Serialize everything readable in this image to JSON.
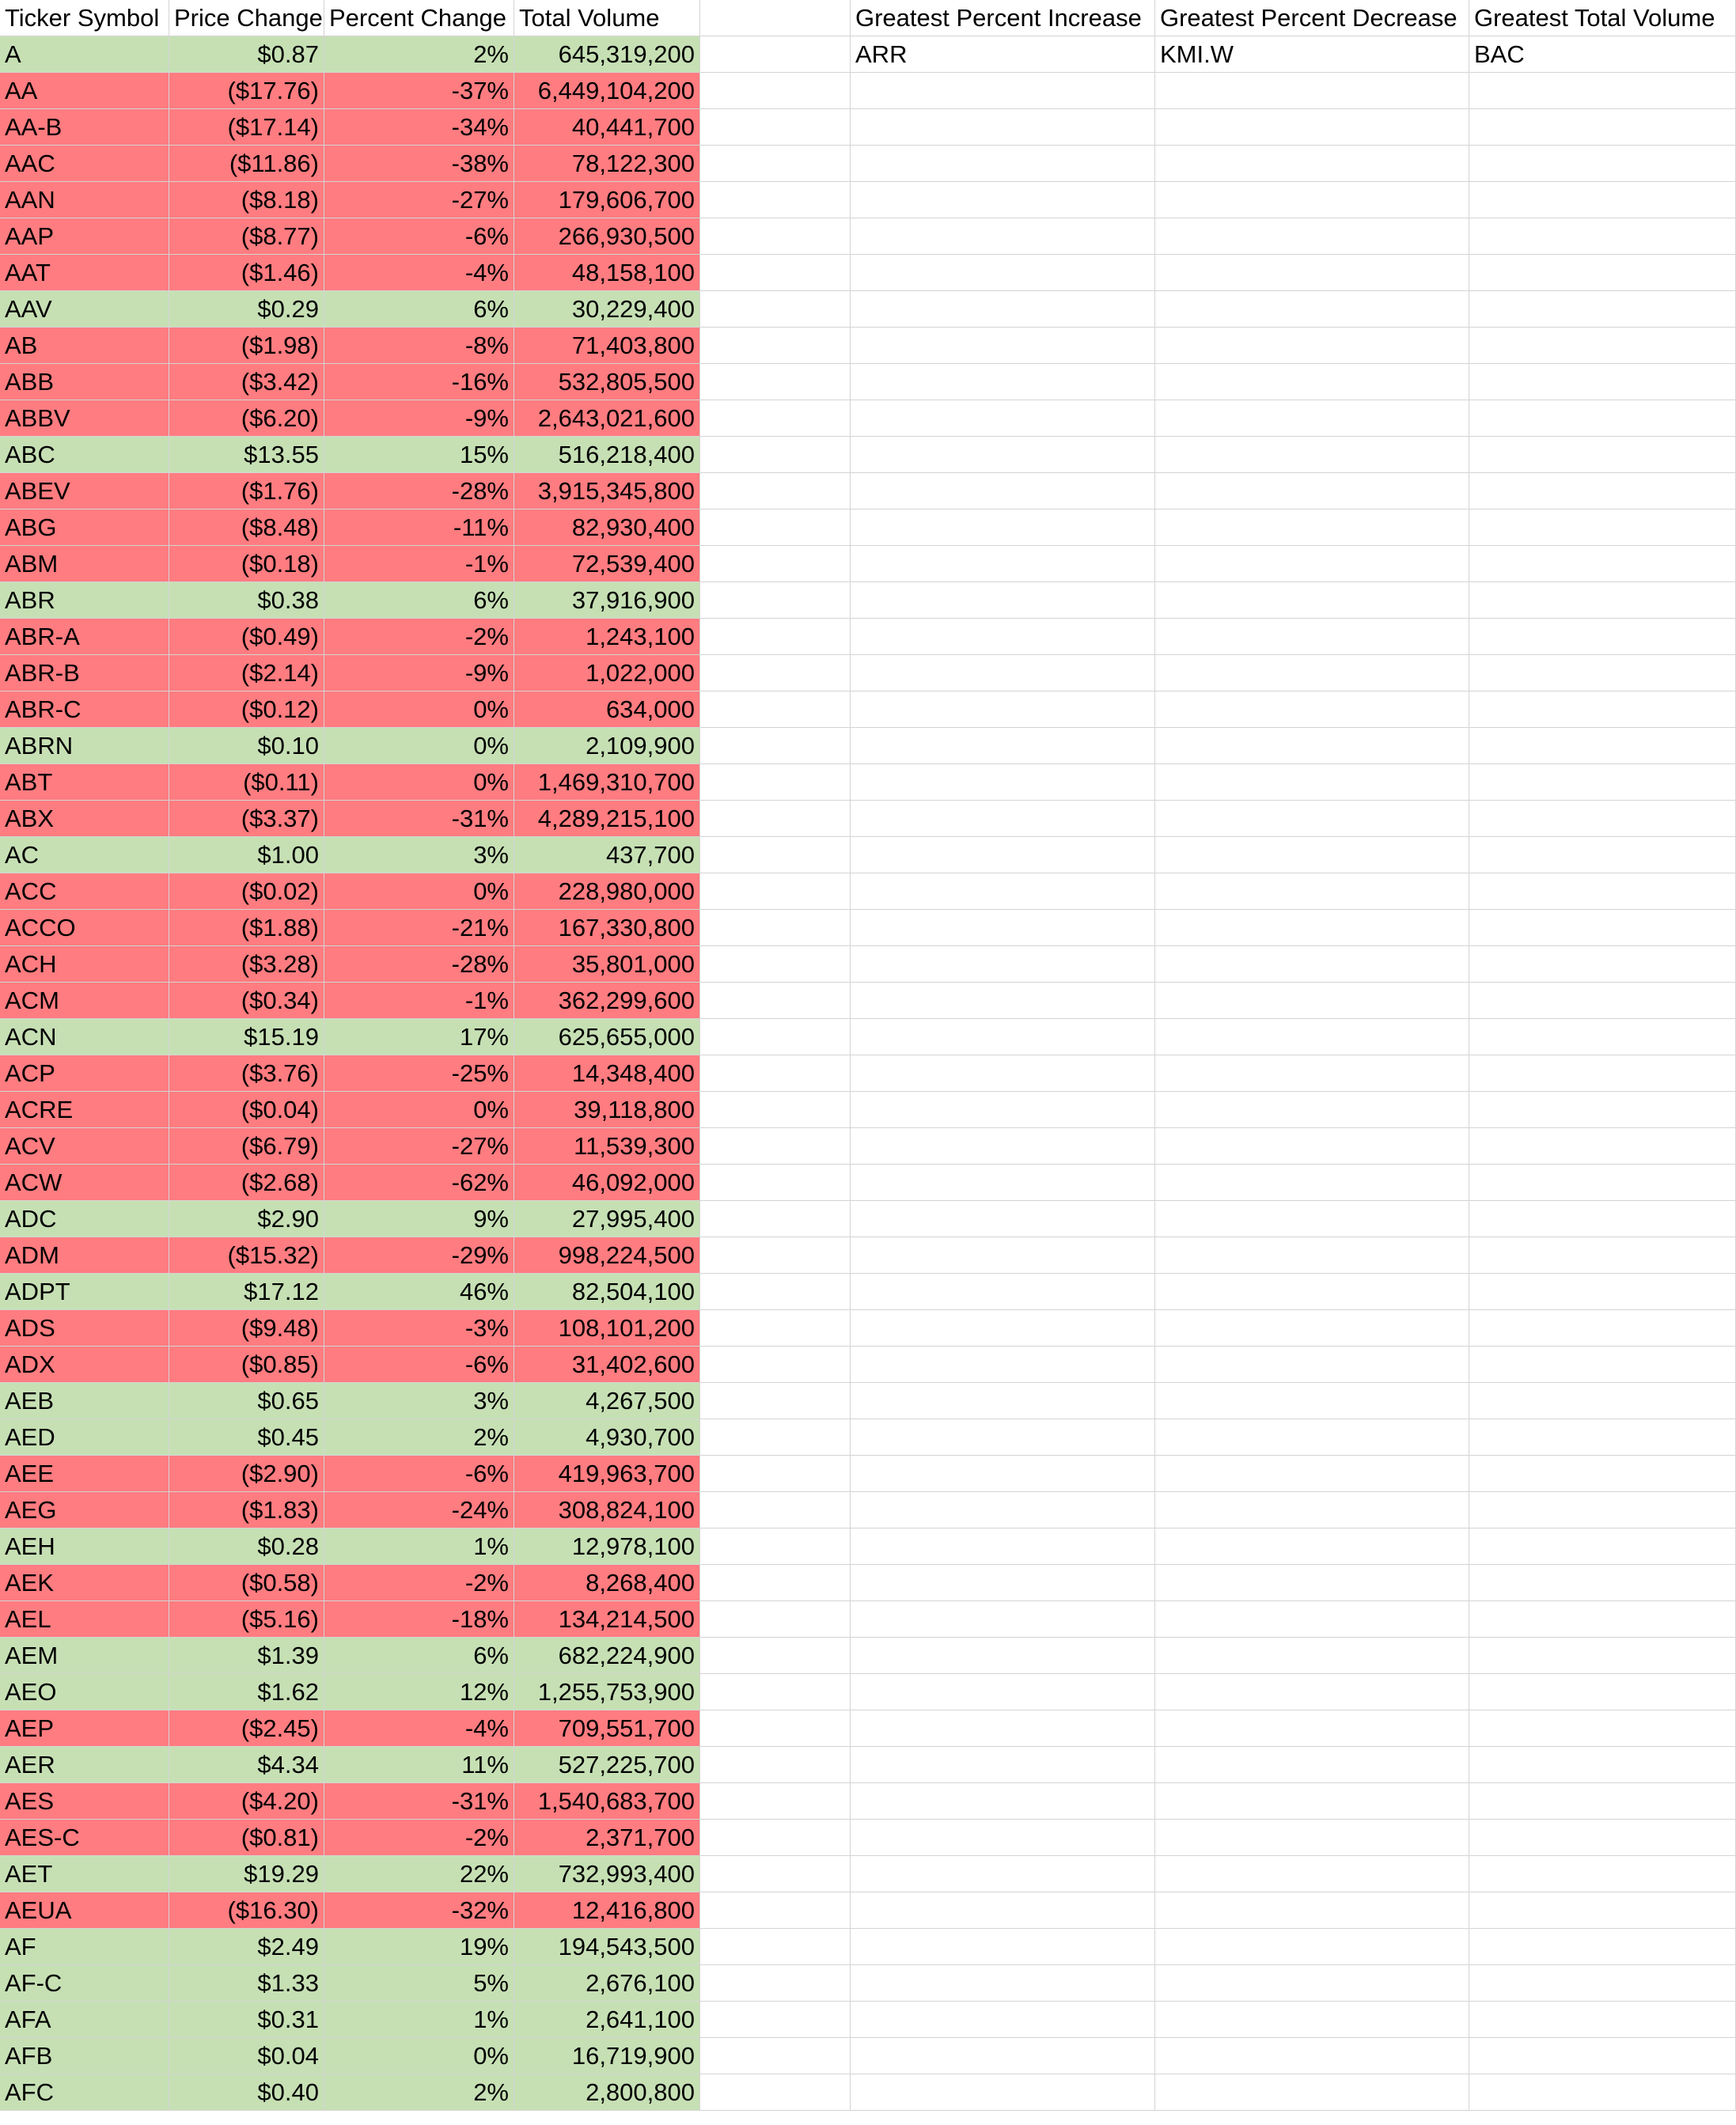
{
  "colors": {
    "positive": "#c6e0b4",
    "negative": "#ff7c80",
    "gridline": "#d4d4d4"
  },
  "headers": {
    "ticker": "Ticker Symbol",
    "price_change": "Price Change",
    "percent_change": "Percent Change",
    "total_volume": "Total Volume",
    "greatest_increase": "Greatest Percent Increase",
    "greatest_decrease": "Greatest Percent Decrease",
    "greatest_volume": "Greatest Total Volume"
  },
  "summary": {
    "greatest_increase": "ARR",
    "greatest_decrease": "KMI.W",
    "greatest_volume": "BAC"
  },
  "rows": [
    {
      "ticker": "A",
      "price": "$0.87",
      "pct": "2%",
      "volume": "645,319,200",
      "status": "pos"
    },
    {
      "ticker": "AA",
      "price": "($17.76)",
      "pct": "-37%",
      "volume": "6,449,104,200",
      "status": "neg"
    },
    {
      "ticker": "AA-B",
      "price": "($17.14)",
      "pct": "-34%",
      "volume": "40,441,700",
      "status": "neg"
    },
    {
      "ticker": "AAC",
      "price": "($11.86)",
      "pct": "-38%",
      "volume": "78,122,300",
      "status": "neg"
    },
    {
      "ticker": "AAN",
      "price": "($8.18)",
      "pct": "-27%",
      "volume": "179,606,700",
      "status": "neg"
    },
    {
      "ticker": "AAP",
      "price": "($8.77)",
      "pct": "-6%",
      "volume": "266,930,500",
      "status": "neg"
    },
    {
      "ticker": "AAT",
      "price": "($1.46)",
      "pct": "-4%",
      "volume": "48,158,100",
      "status": "neg"
    },
    {
      "ticker": "AAV",
      "price": "$0.29",
      "pct": "6%",
      "volume": "30,229,400",
      "status": "pos"
    },
    {
      "ticker": "AB",
      "price": "($1.98)",
      "pct": "-8%",
      "volume": "71,403,800",
      "status": "neg"
    },
    {
      "ticker": "ABB",
      "price": "($3.42)",
      "pct": "-16%",
      "volume": "532,805,500",
      "status": "neg"
    },
    {
      "ticker": "ABBV",
      "price": "($6.20)",
      "pct": "-9%",
      "volume": "2,643,021,600",
      "status": "neg"
    },
    {
      "ticker": "ABC",
      "price": "$13.55",
      "pct": "15%",
      "volume": "516,218,400",
      "status": "pos"
    },
    {
      "ticker": "ABEV",
      "price": "($1.76)",
      "pct": "-28%",
      "volume": "3,915,345,800",
      "status": "neg"
    },
    {
      "ticker": "ABG",
      "price": "($8.48)",
      "pct": "-11%",
      "volume": "82,930,400",
      "status": "neg"
    },
    {
      "ticker": "ABM",
      "price": "($0.18)",
      "pct": "-1%",
      "volume": "72,539,400",
      "status": "neg"
    },
    {
      "ticker": "ABR",
      "price": "$0.38",
      "pct": "6%",
      "volume": "37,916,900",
      "status": "pos"
    },
    {
      "ticker": "ABR-A",
      "price": "($0.49)",
      "pct": "-2%",
      "volume": "1,243,100",
      "status": "neg"
    },
    {
      "ticker": "ABR-B",
      "price": "($2.14)",
      "pct": "-9%",
      "volume": "1,022,000",
      "status": "neg"
    },
    {
      "ticker": "ABR-C",
      "price": "($0.12)",
      "pct": "0%",
      "volume": "634,000",
      "status": "neg"
    },
    {
      "ticker": "ABRN",
      "price": "$0.10",
      "pct": "0%",
      "volume": "2,109,900",
      "status": "pos"
    },
    {
      "ticker": "ABT",
      "price": "($0.11)",
      "pct": "0%",
      "volume": "1,469,310,700",
      "status": "neg"
    },
    {
      "ticker": "ABX",
      "price": "($3.37)",
      "pct": "-31%",
      "volume": "4,289,215,100",
      "status": "neg"
    },
    {
      "ticker": "AC",
      "price": "$1.00",
      "pct": "3%",
      "volume": "437,700",
      "status": "pos"
    },
    {
      "ticker": "ACC",
      "price": "($0.02)",
      "pct": "0%",
      "volume": "228,980,000",
      "status": "neg"
    },
    {
      "ticker": "ACCO",
      "price": "($1.88)",
      "pct": "-21%",
      "volume": "167,330,800",
      "status": "neg"
    },
    {
      "ticker": "ACH",
      "price": "($3.28)",
      "pct": "-28%",
      "volume": "35,801,000",
      "status": "neg"
    },
    {
      "ticker": "ACM",
      "price": "($0.34)",
      "pct": "-1%",
      "volume": "362,299,600",
      "status": "neg"
    },
    {
      "ticker": "ACN",
      "price": "$15.19",
      "pct": "17%",
      "volume": "625,655,000",
      "status": "pos"
    },
    {
      "ticker": "ACP",
      "price": "($3.76)",
      "pct": "-25%",
      "volume": "14,348,400",
      "status": "neg"
    },
    {
      "ticker": "ACRE",
      "price": "($0.04)",
      "pct": "0%",
      "volume": "39,118,800",
      "status": "neg"
    },
    {
      "ticker": "ACV",
      "price": "($6.79)",
      "pct": "-27%",
      "volume": "11,539,300",
      "status": "neg"
    },
    {
      "ticker": "ACW",
      "price": "($2.68)",
      "pct": "-62%",
      "volume": "46,092,000",
      "status": "neg"
    },
    {
      "ticker": "ADC",
      "price": "$2.90",
      "pct": "9%",
      "volume": "27,995,400",
      "status": "pos"
    },
    {
      "ticker": "ADM",
      "price": "($15.32)",
      "pct": "-29%",
      "volume": "998,224,500",
      "status": "neg"
    },
    {
      "ticker": "ADPT",
      "price": "$17.12",
      "pct": "46%",
      "volume": "82,504,100",
      "status": "pos"
    },
    {
      "ticker": "ADS",
      "price": "($9.48)",
      "pct": "-3%",
      "volume": "108,101,200",
      "status": "neg"
    },
    {
      "ticker": "ADX",
      "price": "($0.85)",
      "pct": "-6%",
      "volume": "31,402,600",
      "status": "neg"
    },
    {
      "ticker": "AEB",
      "price": "$0.65",
      "pct": "3%",
      "volume": "4,267,500",
      "status": "pos"
    },
    {
      "ticker": "AED",
      "price": "$0.45",
      "pct": "2%",
      "volume": "4,930,700",
      "status": "pos"
    },
    {
      "ticker": "AEE",
      "price": "($2.90)",
      "pct": "-6%",
      "volume": "419,963,700",
      "status": "neg"
    },
    {
      "ticker": "AEG",
      "price": "($1.83)",
      "pct": "-24%",
      "volume": "308,824,100",
      "status": "neg"
    },
    {
      "ticker": "AEH",
      "price": "$0.28",
      "pct": "1%",
      "volume": "12,978,100",
      "status": "pos"
    },
    {
      "ticker": "AEK",
      "price": "($0.58)",
      "pct": "-2%",
      "volume": "8,268,400",
      "status": "neg"
    },
    {
      "ticker": "AEL",
      "price": "($5.16)",
      "pct": "-18%",
      "volume": "134,214,500",
      "status": "neg"
    },
    {
      "ticker": "AEM",
      "price": "$1.39",
      "pct": "6%",
      "volume": "682,224,900",
      "status": "pos"
    },
    {
      "ticker": "AEO",
      "price": "$1.62",
      "pct": "12%",
      "volume": "1,255,753,900",
      "status": "pos"
    },
    {
      "ticker": "AEP",
      "price": "($2.45)",
      "pct": "-4%",
      "volume": "709,551,700",
      "status": "neg"
    },
    {
      "ticker": "AER",
      "price": "$4.34",
      "pct": "11%",
      "volume": "527,225,700",
      "status": "pos"
    },
    {
      "ticker": "AES",
      "price": "($4.20)",
      "pct": "-31%",
      "volume": "1,540,683,700",
      "status": "neg"
    },
    {
      "ticker": "AES-C",
      "price": "($0.81)",
      "pct": "-2%",
      "volume": "2,371,700",
      "status": "neg"
    },
    {
      "ticker": "AET",
      "price": "$19.29",
      "pct": "22%",
      "volume": "732,993,400",
      "status": "pos"
    },
    {
      "ticker": "AEUA",
      "price": "($16.30)",
      "pct": "-32%",
      "volume": "12,416,800",
      "status": "neg"
    },
    {
      "ticker": "AF",
      "price": "$2.49",
      "pct": "19%",
      "volume": "194,543,500",
      "status": "pos"
    },
    {
      "ticker": "AF-C",
      "price": "$1.33",
      "pct": "5%",
      "volume": "2,676,100",
      "status": "pos"
    },
    {
      "ticker": "AFA",
      "price": "$0.31",
      "pct": "1%",
      "volume": "2,641,100",
      "status": "pos"
    },
    {
      "ticker": "AFB",
      "price": "$0.04",
      "pct": "0%",
      "volume": "16,719,900",
      "status": "pos"
    },
    {
      "ticker": "AFC",
      "price": "$0.40",
      "pct": "2%",
      "volume": "2,800,800",
      "status": "pos"
    }
  ]
}
